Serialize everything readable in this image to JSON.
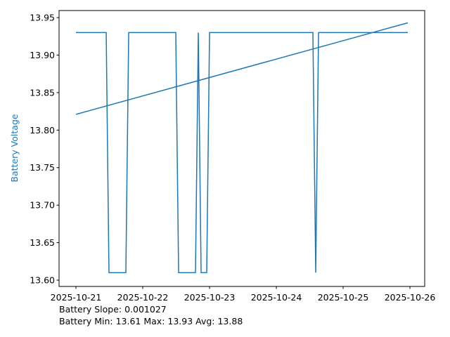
{
  "chart_data": {
    "type": "line",
    "ylabel": "Battery Voltage",
    "ylabel_color": "#1f77b4",
    "series": [
      {
        "color": "#1f77b4",
        "x": [
          "2025-10-21T00:00",
          "2025-10-21T10:52",
          "2025-10-21T11:52",
          "2025-10-21T17:56",
          "2025-10-21T18:57",
          "2025-10-22T11:52",
          "2025-10-22T12:53",
          "2025-10-22T18:57",
          "2025-10-22T19:58",
          "2025-10-22T20:58",
          "2025-10-22T22:59",
          "2025-10-23T00:00",
          "2025-10-24T13:08",
          "2025-10-24T14:09",
          "2025-10-24T15:10",
          "2025-10-25T23:14"
        ],
        "values": [
          13.93,
          13.93,
          13.61,
          13.61,
          13.93,
          13.93,
          13.61,
          13.61,
          13.93,
          13.61,
          13.61,
          13.93,
          13.93,
          13.61,
          13.93,
          13.93
        ]
      },
      {
        "color": "#1f77b4",
        "x": [
          "2025-10-21T00:00",
          "2025-10-25T23:14"
        ],
        "values": [
          13.821,
          13.943
        ]
      }
    ],
    "xlim": [
      "2025-10-20T17:56",
      "2025-10-26T05:18"
    ],
    "xticks": [
      "2025-10-21",
      "2025-10-22",
      "2025-10-23",
      "2025-10-24",
      "2025-10-25",
      "2025-10-26"
    ],
    "ylim": [
      13.5916,
      13.9594
    ],
    "yticks": [
      {
        "value": 13.6,
        "label": "13.60"
      },
      {
        "value": 13.65,
        "label": "13.65"
      },
      {
        "value": 13.7,
        "label": "13.70"
      },
      {
        "value": 13.75,
        "label": "13.75"
      },
      {
        "value": 13.8,
        "label": "13.80"
      },
      {
        "value": 13.85,
        "label": "13.85"
      },
      {
        "value": 13.9,
        "label": "13.90"
      },
      {
        "value": 13.95,
        "label": "13.95"
      }
    ],
    "annotations": [
      "Battery Slope: 0.001027",
      "Battery Min: 13.61 Max: 13.93 Avg: 13.88"
    ]
  }
}
